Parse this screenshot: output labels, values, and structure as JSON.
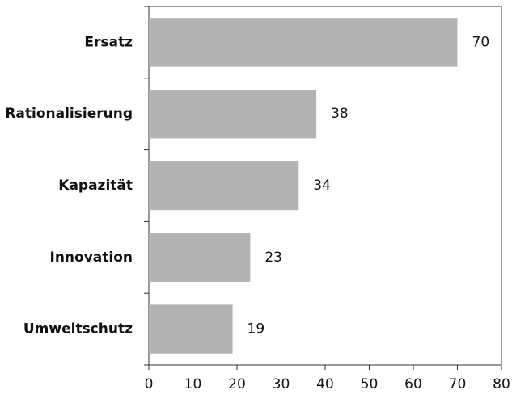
{
  "chart_data": {
    "type": "barh",
    "categories": [
      "Ersatz",
      "Rationalisierung",
      "Kapazität",
      "Innovation",
      "Umweltschutz"
    ],
    "values": [
      70,
      38,
      34,
      23,
      19
    ],
    "color": "#b3b3b3",
    "xlim": [
      0,
      80
    ],
    "xticks": [
      0,
      10,
      20,
      30,
      40,
      50,
      60,
      70,
      80
    ]
  }
}
